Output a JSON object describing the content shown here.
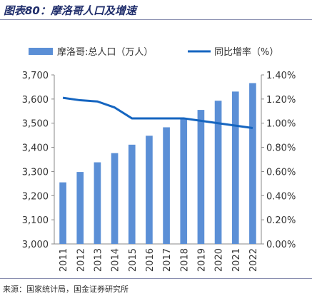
{
  "figure": {
    "title": "图表80：摩洛哥人口及增速",
    "source": "来源：国家统计局，国金证券研究所"
  },
  "chart_data": {
    "type": "bar",
    "categories": [
      "2011",
      "2012",
      "2013",
      "2014",
      "2015",
      "2016",
      "2017",
      "2018",
      "2019",
      "2020",
      "2021",
      "2022"
    ],
    "series": [
      {
        "name": "摩洛哥:总人口（万人）",
        "type": "bar",
        "axis": "left",
        "color": "#5b8fd6",
        "values": [
          3255,
          3298,
          3338,
          3376,
          3411,
          3448,
          3483,
          3519,
          3555,
          3593,
          3631,
          3666
        ]
      },
      {
        "name": "同比增率（%）",
        "type": "line",
        "axis": "right",
        "color": "#1565c0",
        "values": [
          1.21,
          1.19,
          1.18,
          1.13,
          1.04,
          1.04,
          1.04,
          1.04,
          1.02,
          1.0,
          0.98,
          0.96
        ]
      }
    ],
    "ylim_left": [
      3000,
      3700
    ],
    "yticks_left": [
      "3,000",
      "3,100",
      "3,200",
      "3,300",
      "3,400",
      "3,500",
      "3,600",
      "3,700"
    ],
    "ylim_right": [
      0,
      1.4
    ],
    "yticks_right": [
      "0.00%",
      "0.20%",
      "0.40%",
      "0.60%",
      "0.80%",
      "1.00%",
      "1.20%",
      "1.40%"
    ],
    "legend_position": "top",
    "grid": false
  }
}
